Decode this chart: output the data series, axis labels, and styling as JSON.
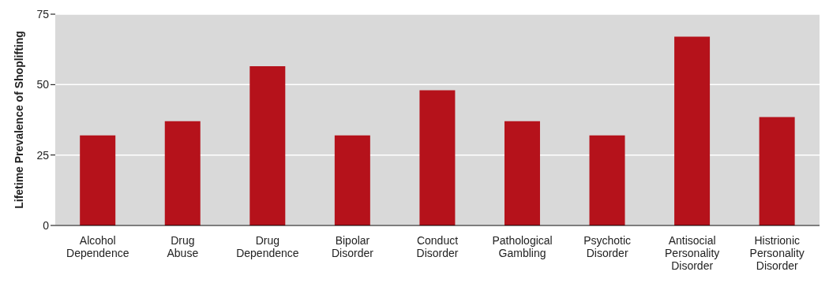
{
  "chart_data": {
    "type": "bar",
    "ylabel": "Lifetime Prevalence of Shoplifting",
    "categories": [
      "Alcohol Dependence",
      "Drug Abuse",
      "Drug Dependence",
      "Bipolar Disorder",
      "Conduct Disorder",
      "Pathological Gambling",
      "Psychotic Disorder",
      "Antisocial Personality Disorder",
      "Histrionic Personality Disorder"
    ],
    "values": [
      32,
      37,
      56.5,
      32,
      48,
      37,
      32,
      67,
      38.5
    ],
    "color": "#b5121b",
    "ylim": [
      0,
      75
    ],
    "yticks": [
      0,
      25,
      50,
      75
    ],
    "grid": "y"
  }
}
